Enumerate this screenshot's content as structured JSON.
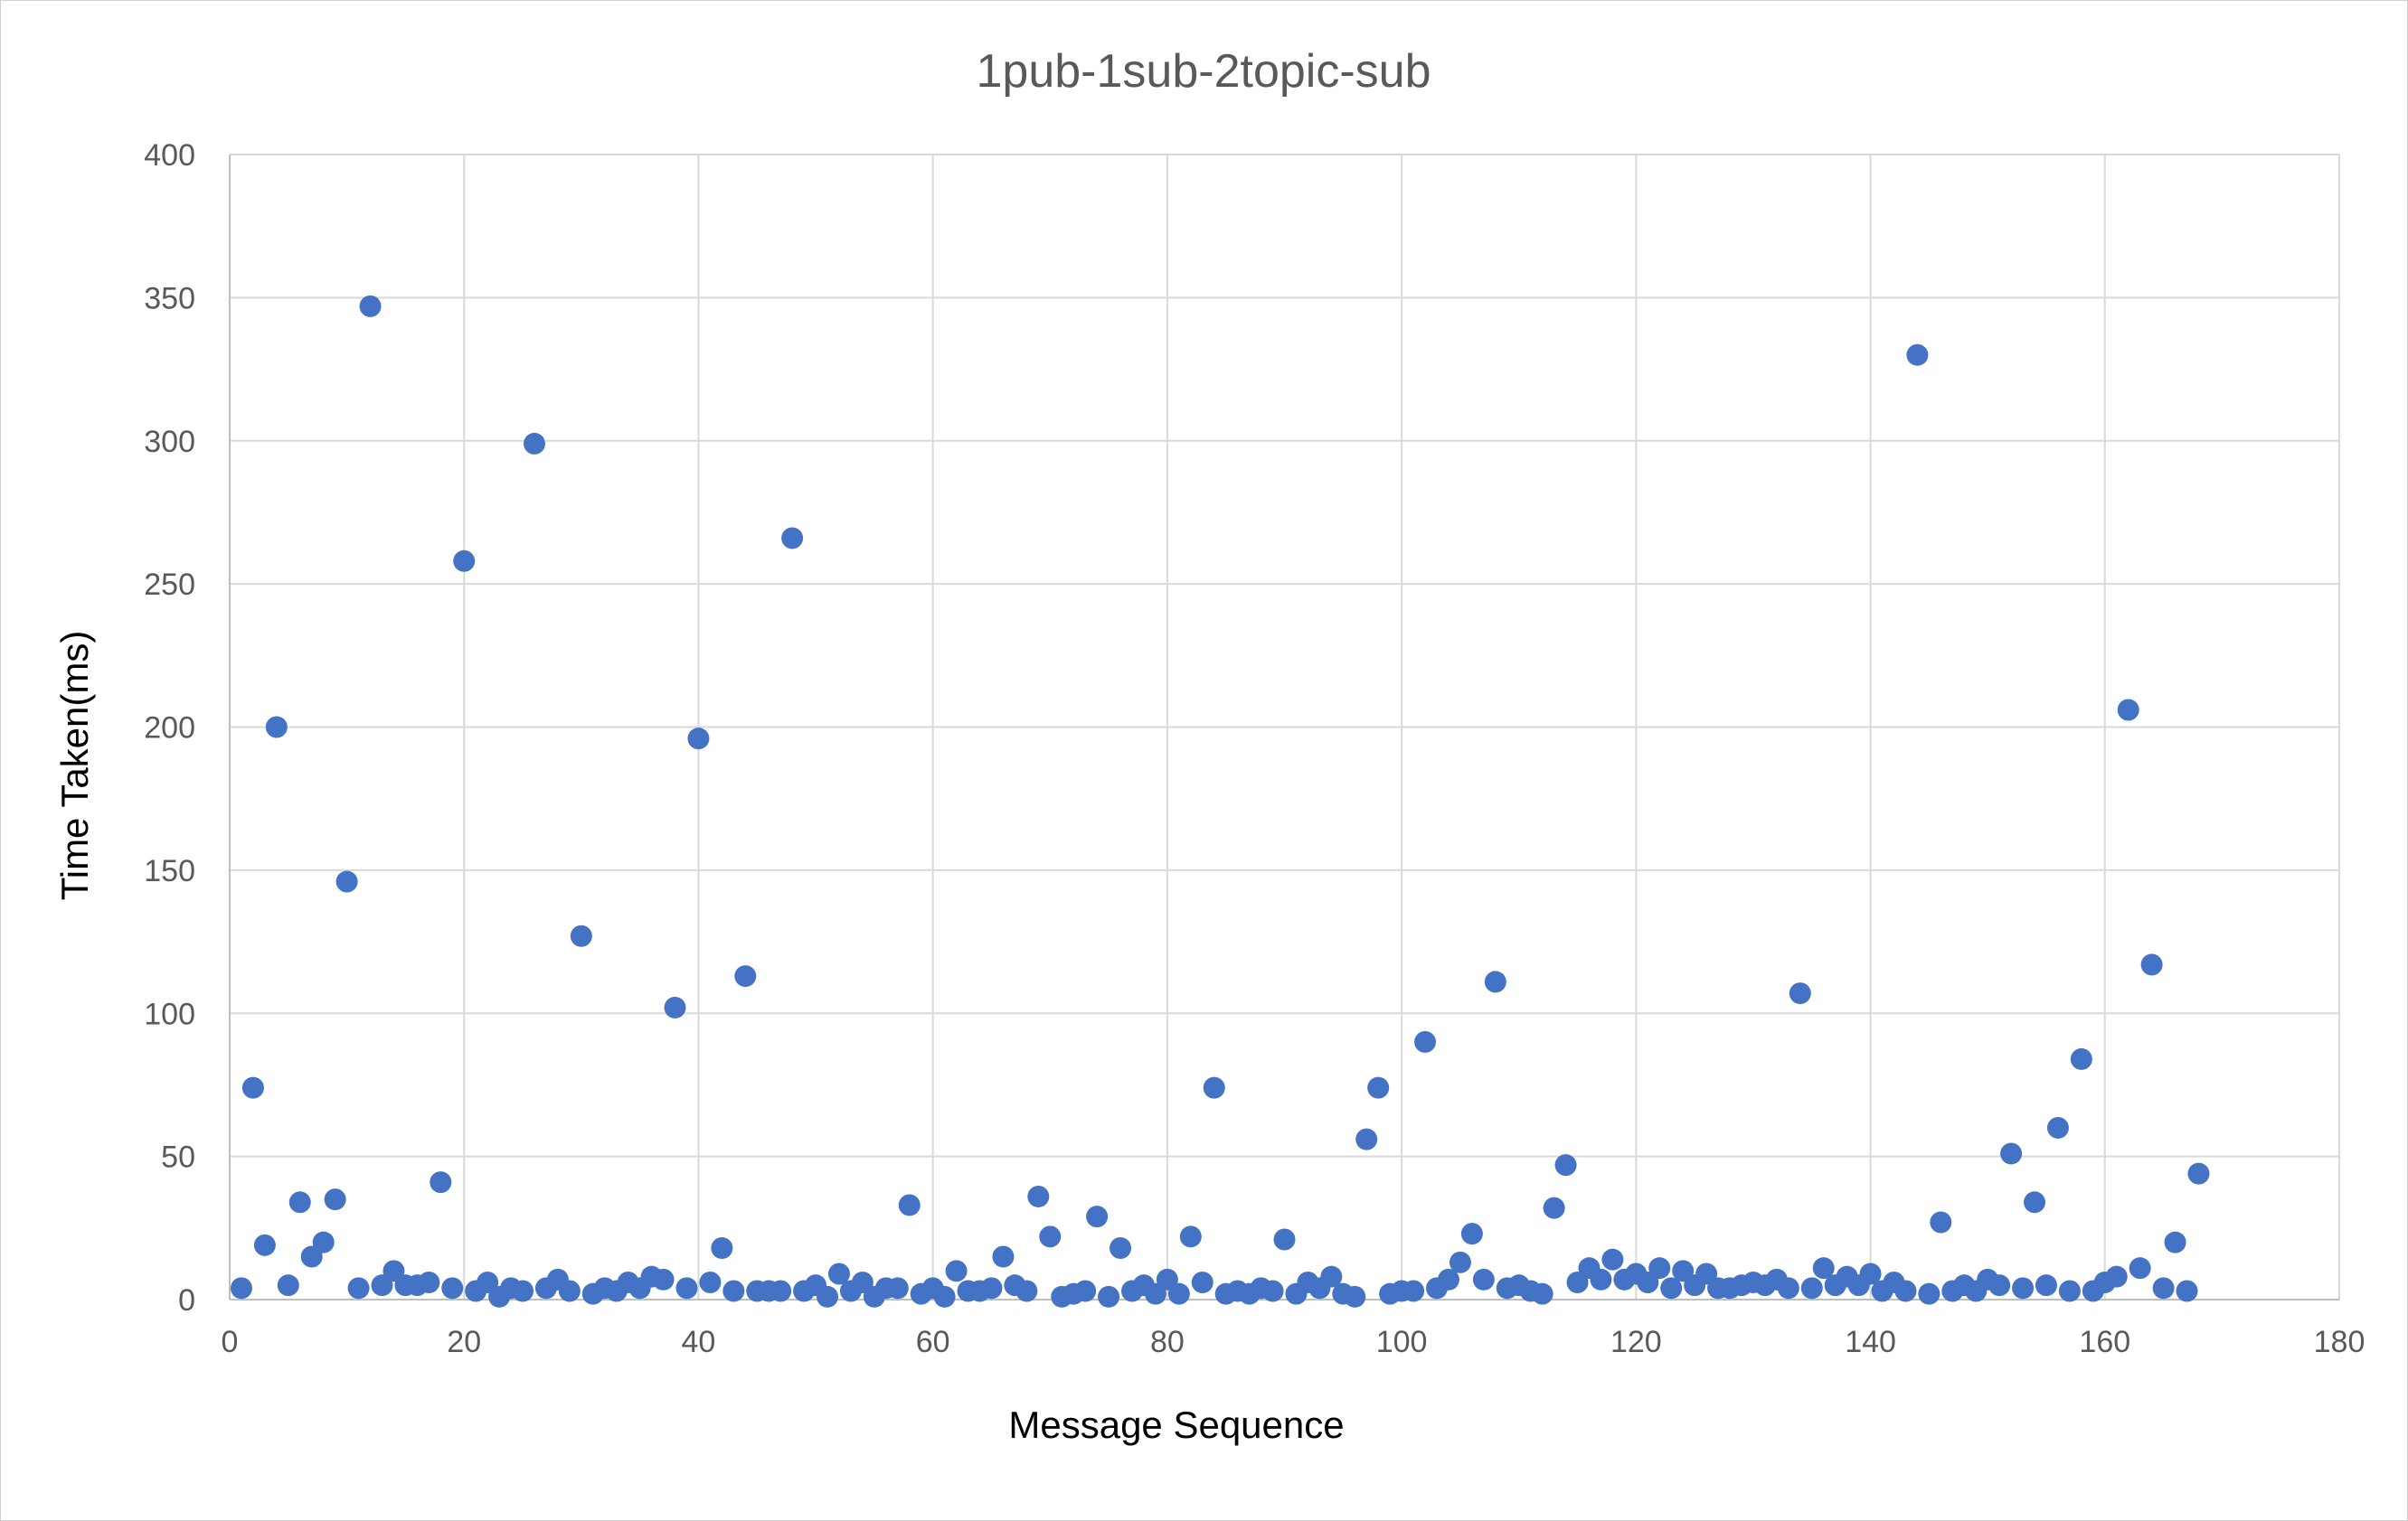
{
  "chart_data": {
    "type": "scatter",
    "title": "1pub-1sub-2topic-sub",
    "xlabel": "Message Sequence",
    "ylabel": "Time Taken(ms)",
    "xlim": [
      0,
      180
    ],
    "ylim": [
      0,
      400
    ],
    "x_ticks": [
      "0",
      "20",
      "40",
      "60",
      "80",
      "100",
      "120",
      "140",
      "160",
      "180"
    ],
    "y_ticks": [
      "0",
      "50",
      "100",
      "150",
      "200",
      "250",
      "300",
      "350",
      "400"
    ],
    "grid": true,
    "legend": "none",
    "marker_color": "#4472c4",
    "series": [
      {
        "points": [
          [
            1,
            4
          ],
          [
            2,
            74
          ],
          [
            3,
            19
          ],
          [
            4,
            200
          ],
          [
            5,
            5
          ],
          [
            6,
            34
          ],
          [
            7,
            15
          ],
          [
            8,
            20
          ],
          [
            9,
            35
          ],
          [
            10,
            146
          ],
          [
            11,
            4
          ],
          [
            12,
            347
          ],
          [
            13,
            5
          ],
          [
            14,
            10
          ],
          [
            15,
            5
          ],
          [
            16,
            5
          ],
          [
            17,
            6
          ],
          [
            18,
            41
          ],
          [
            19,
            4
          ],
          [
            20,
            258
          ],
          [
            21,
            3
          ],
          [
            22,
            6
          ],
          [
            23,
            1
          ],
          [
            24,
            4
          ],
          [
            25,
            3
          ],
          [
            26,
            299
          ],
          [
            27,
            4
          ],
          [
            28,
            7
          ],
          [
            29,
            3
          ],
          [
            30,
            127
          ],
          [
            31,
            2
          ],
          [
            32,
            4
          ],
          [
            33,
            3
          ],
          [
            34,
            6
          ],
          [
            35,
            4
          ],
          [
            36,
            8
          ],
          [
            37,
            7
          ],
          [
            38,
            102
          ],
          [
            39,
            4
          ],
          [
            40,
            196
          ],
          [
            41,
            6
          ],
          [
            42,
            18
          ],
          [
            43,
            3
          ],
          [
            44,
            113
          ],
          [
            45,
            3
          ],
          [
            46,
            3
          ],
          [
            47,
            3
          ],
          [
            48,
            266
          ],
          [
            49,
            3
          ],
          [
            50,
            5
          ],
          [
            51,
            1
          ],
          [
            52,
            9
          ],
          [
            53,
            3
          ],
          [
            54,
            6
          ],
          [
            55,
            1
          ],
          [
            56,
            4
          ],
          [
            57,
            4
          ],
          [
            58,
            33
          ],
          [
            59,
            2
          ],
          [
            60,
            4
          ],
          [
            61,
            1
          ],
          [
            62,
            10
          ],
          [
            63,
            3
          ],
          [
            64,
            3
          ],
          [
            65,
            4
          ],
          [
            66,
            15
          ],
          [
            67,
            5
          ],
          [
            68,
            3
          ],
          [
            69,
            36
          ],
          [
            70,
            22
          ],
          [
            71,
            1
          ],
          [
            72,
            2
          ],
          [
            73,
            3
          ],
          [
            74,
            29
          ],
          [
            75,
            1
          ],
          [
            76,
            18
          ],
          [
            77,
            3
          ],
          [
            78,
            5
          ],
          [
            79,
            2
          ],
          [
            80,
            7
          ],
          [
            81,
            2
          ],
          [
            82,
            22
          ],
          [
            83,
            6
          ],
          [
            84,
            74
          ],
          [
            85,
            2
          ],
          [
            86,
            3
          ],
          [
            87,
            2
          ],
          [
            88,
            4
          ],
          [
            89,
            3
          ],
          [
            90,
            21
          ],
          [
            91,
            2
          ],
          [
            92,
            6
          ],
          [
            93,
            4
          ],
          [
            94,
            8
          ],
          [
            95,
            2
          ],
          [
            96,
            1
          ],
          [
            97,
            56
          ],
          [
            98,
            74
          ],
          [
            99,
            2
          ],
          [
            100,
            3
          ],
          [
            101,
            3
          ],
          [
            102,
            90
          ],
          [
            103,
            4
          ],
          [
            104,
            7
          ],
          [
            105,
            13
          ],
          [
            106,
            23
          ],
          [
            107,
            7
          ],
          [
            108,
            111
          ],
          [
            109,
            4
          ],
          [
            110,
            5
          ],
          [
            111,
            3
          ],
          [
            112,
            2
          ],
          [
            113,
            32
          ],
          [
            114,
            47
          ],
          [
            115,
            6
          ],
          [
            116,
            11
          ],
          [
            117,
            7
          ],
          [
            118,
            14
          ],
          [
            119,
            7
          ],
          [
            120,
            9
          ],
          [
            121,
            6
          ],
          [
            122,
            11
          ],
          [
            123,
            4
          ],
          [
            124,
            10
          ],
          [
            125,
            5
          ],
          [
            126,
            9
          ],
          [
            127,
            4
          ],
          [
            128,
            4
          ],
          [
            129,
            5
          ],
          [
            130,
            6
          ],
          [
            131,
            5
          ],
          [
            132,
            7
          ],
          [
            133,
            4
          ],
          [
            134,
            107
          ],
          [
            135,
            4
          ],
          [
            136,
            11
          ],
          [
            137,
            5
          ],
          [
            138,
            8
          ],
          [
            139,
            5
          ],
          [
            140,
            9
          ],
          [
            141,
            3
          ],
          [
            142,
            6
          ],
          [
            143,
            3
          ],
          [
            144,
            330
          ],
          [
            145,
            2
          ],
          [
            146,
            27
          ],
          [
            147,
            3
          ],
          [
            148,
            5
          ],
          [
            149,
            3
          ],
          [
            150,
            7
          ],
          [
            151,
            5
          ],
          [
            152,
            51
          ],
          [
            153,
            4
          ],
          [
            154,
            34
          ],
          [
            155,
            5
          ],
          [
            156,
            60
          ],
          [
            157,
            3
          ],
          [
            158,
            84
          ],
          [
            159,
            3
          ],
          [
            160,
            6
          ],
          [
            161,
            8
          ],
          [
            162,
            206
          ],
          [
            163,
            11
          ],
          [
            164,
            117
          ],
          [
            165,
            4
          ],
          [
            166,
            20
          ],
          [
            167,
            3
          ],
          [
            168,
            44
          ]
        ]
      }
    ]
  }
}
